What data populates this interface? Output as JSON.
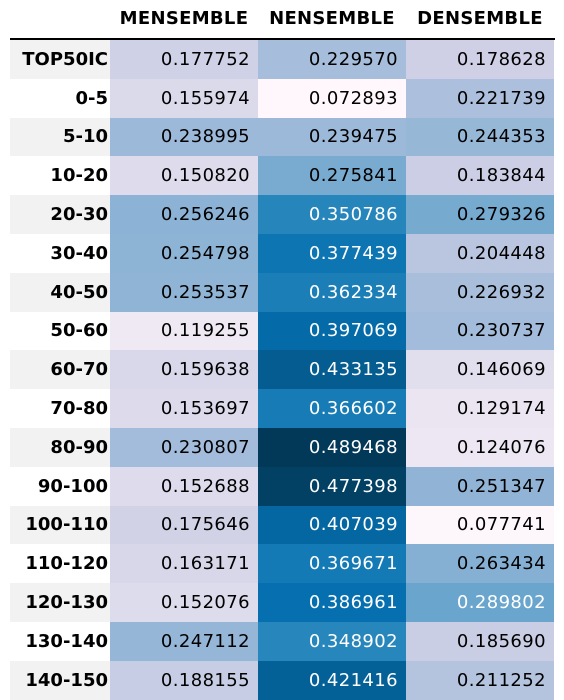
{
  "chart_data": {
    "type": "heatmap",
    "columns": [
      "MENSEMBLE",
      "NENSEMBLE",
      "DENSEMBLE"
    ],
    "rows": [
      {
        "label": "TOP50IC",
        "values": [
          "0.177752",
          "0.229570",
          "0.178628"
        ]
      },
      {
        "label": "0-5",
        "values": [
          "0.155974",
          "0.072893",
          "0.221739"
        ]
      },
      {
        "label": "5-10",
        "values": [
          "0.238995",
          "0.239475",
          "0.244353"
        ]
      },
      {
        "label": "10-20",
        "values": [
          "0.150820",
          "0.275841",
          "0.183844"
        ]
      },
      {
        "label": "20-30",
        "values": [
          "0.256246",
          "0.350786",
          "0.279326"
        ]
      },
      {
        "label": "30-40",
        "values": [
          "0.254798",
          "0.377439",
          "0.204448"
        ]
      },
      {
        "label": "40-50",
        "values": [
          "0.253537",
          "0.362334",
          "0.226932"
        ]
      },
      {
        "label": "50-60",
        "values": [
          "0.119255",
          "0.397069",
          "0.230737"
        ]
      },
      {
        "label": "60-70",
        "values": [
          "0.159638",
          "0.433135",
          "0.146069"
        ]
      },
      {
        "label": "70-80",
        "values": [
          "0.153697",
          "0.366602",
          "0.129174"
        ]
      },
      {
        "label": "80-90",
        "values": [
          "0.230807",
          "0.489468",
          "0.124076"
        ]
      },
      {
        "label": "90-100",
        "values": [
          "0.152688",
          "0.477398",
          "0.251347"
        ]
      },
      {
        "label": "100-110",
        "values": [
          "0.175646",
          "0.407039",
          "0.077741"
        ]
      },
      {
        "label": "110-120",
        "values": [
          "0.163171",
          "0.369671",
          "0.263434"
        ]
      },
      {
        "label": "120-130",
        "values": [
          "0.152076",
          "0.386961",
          "0.289802"
        ]
      },
      {
        "label": "130-140",
        "values": [
          "0.247112",
          "0.348902",
          "0.185690"
        ]
      },
      {
        "label": "140-150",
        "values": [
          "0.188155",
          "0.421416",
          "0.211252"
        ]
      }
    ],
    "color_scale": "PuBu",
    "value_range": [
      0.072893,
      0.489468
    ]
  }
}
